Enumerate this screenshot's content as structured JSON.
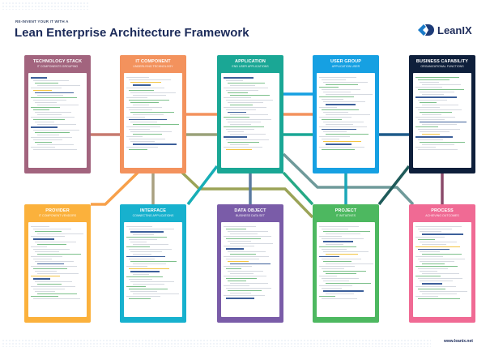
{
  "header": {
    "kicker": "RE-INVENT YOUR IT WITH A",
    "title": "Lean Enterprise Architecture Framework",
    "logo_text": "LeanIX"
  },
  "footer": {
    "url": "www.leanix.net"
  },
  "cards": [
    {
      "title": "TECHNOLOGY STACK",
      "subtitle": "IT COMPONENTS GROUPING",
      "color": "#a2647e"
    },
    {
      "title": "IT COMPONENT",
      "subtitle": "UNDERLYING TECHNOLOGY",
      "color": "#f3925d"
    },
    {
      "title": "APPLICATION",
      "subtitle": "END USER APPLICATIONS",
      "color": "#1aa795"
    },
    {
      "title": "USER GROUP",
      "subtitle": "APPLICATION USER",
      "color": "#16a0e2"
    },
    {
      "title": "BUSINESS CAPABILITY",
      "subtitle": "ORGANIZATIONAL FUNCTIONS",
      "color": "#0e1f3b"
    },
    {
      "title": "PROVIDER",
      "subtitle": "IT COMPONENT VENDORS",
      "color": "#fbb13c"
    },
    {
      "title": "INTERFACE",
      "subtitle": "CONNECTING APPLICATIONS",
      "color": "#17b1ce"
    },
    {
      "title": "DATA OBJECT",
      "subtitle": "BUSINESS DATA SET",
      "color": "#7a5ca8"
    },
    {
      "title": "PROJECT",
      "subtitle": "IT INITIATIVES",
      "color": "#4db860"
    },
    {
      "title": "PROCESS",
      "subtitle": "ACHIEVING OUTCOMES",
      "color": "#f06a94"
    }
  ]
}
